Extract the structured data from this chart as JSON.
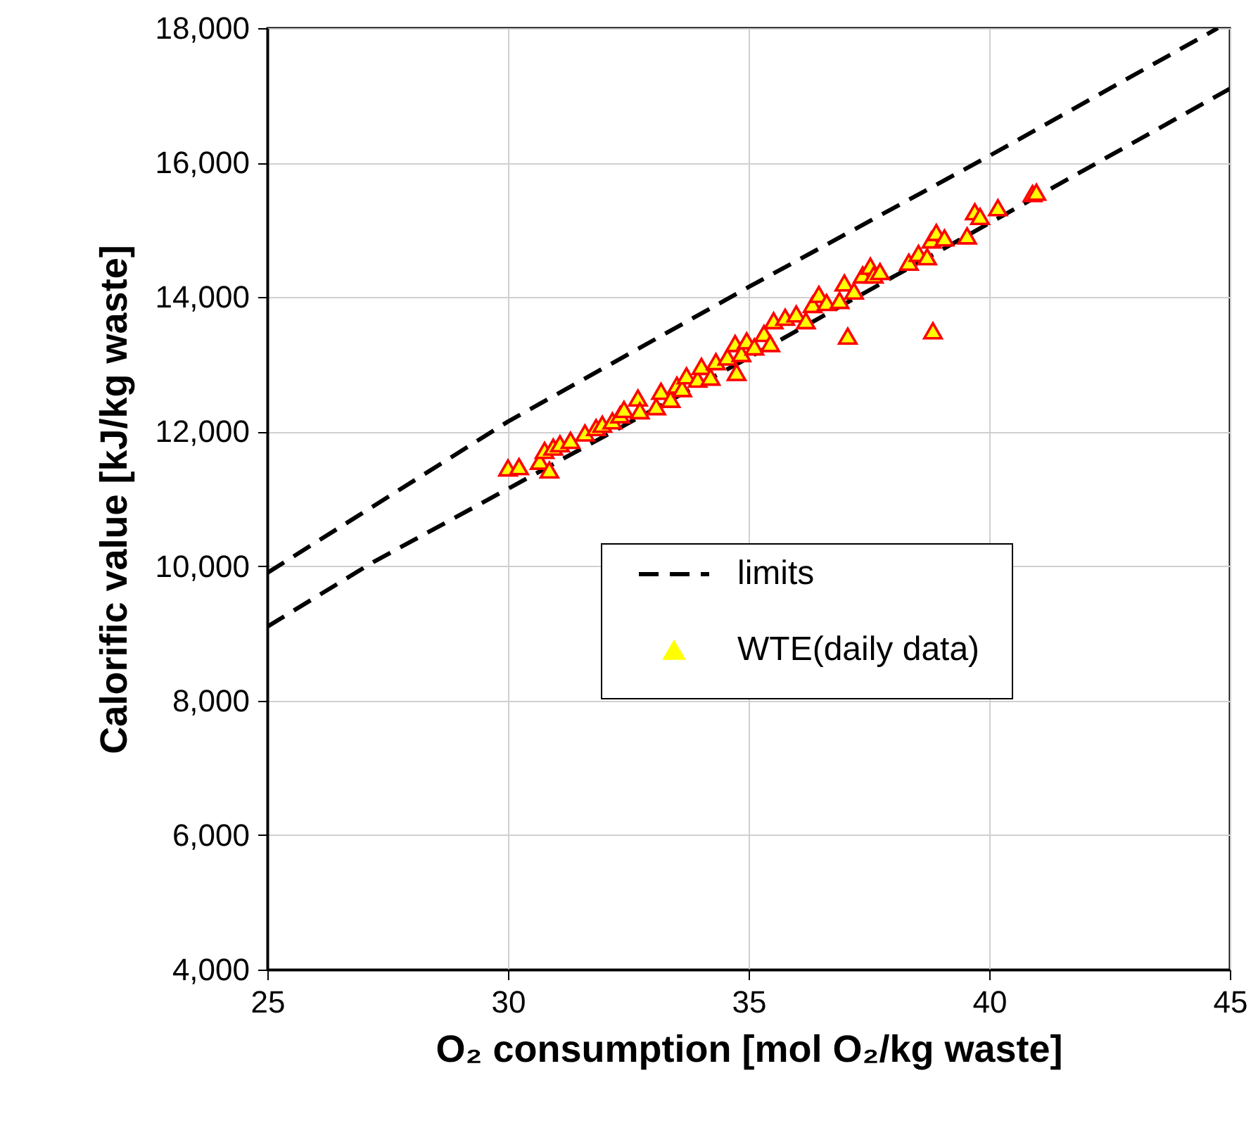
{
  "chart_data": {
    "type": "scatter",
    "xlabel": "O₂ consumption [mol O₂/kg waste]",
    "ylabel": "Calorific value [kJ/kg waste]",
    "xlim": [
      25,
      45
    ],
    "xticks": [
      25,
      30,
      35,
      40,
      45
    ],
    "ylim": [
      4000,
      18000
    ],
    "yticks": [
      {
        "value": 4000,
        "label": "4,000"
      },
      {
        "value": 6000,
        "label": "6,000"
      },
      {
        "value": 8000,
        "label": "8,000"
      },
      {
        "value": 10000,
        "label": "10,000"
      },
      {
        "value": 12000,
        "label": "12,000"
      },
      {
        "value": 14000,
        "label": "14,000"
      },
      {
        "value": 16000,
        "label": "16,000"
      },
      {
        "value": 18000,
        "label": "18,000"
      }
    ],
    "grid": true,
    "legend": "bottom right",
    "series": [
      {
        "name": "limits",
        "type": "line",
        "line_style": "dashed",
        "color": "#000000",
        "x": [
          25,
          30,
          35,
          40,
          44.75
        ],
        "values": [
          9900,
          12150,
          14150,
          16100,
          18000
        ]
      },
      {
        "type": "line",
        "line_style": "dashed",
        "color": "#000000",
        "x": [
          25,
          27.2,
          30,
          35,
          40,
          45
        ],
        "values": [
          9100,
          10060,
          11150,
          13100,
          15100,
          17100
        ]
      },
      {
        "name": "WTE(daily data)",
        "marker": "triangle",
        "color": "#ffff00",
        "x": [
          30.0,
          30.23,
          30.66,
          30.76,
          30.86,
          30.94,
          31.08,
          31.3,
          31.6,
          31.83,
          31.96,
          32.17,
          32.33,
          32.41,
          32.7,
          32.74,
          33.08,
          33.18,
          33.38,
          33.51,
          33.62,
          33.71,
          33.94,
          34.02,
          34.21,
          34.32,
          34.56,
          34.72,
          34.75,
          34.85,
          34.96,
          35.12,
          35.32,
          35.45,
          35.52,
          35.76,
          35.99,
          36.19,
          36.33,
          36.46,
          36.62,
          36.89,
          36.99,
          37.06,
          37.19,
          37.37,
          37.53,
          37.6,
          37.73,
          38.33,
          38.53,
          38.71,
          38.8,
          38.83,
          38.9,
          39.07,
          39.54,
          39.7,
          39.81,
          40.18,
          40.9,
          40.98
        ],
        "values": [
          11460,
          11480,
          11560,
          11720,
          11430,
          11770,
          11820,
          11870,
          11980,
          12060,
          12110,
          12160,
          12250,
          12330,
          12500,
          12310,
          12370,
          12600,
          12480,
          12690,
          12640,
          12830,
          12780,
          12970,
          12810,
          13040,
          13110,
          13310,
          12880,
          13160,
          13350,
          13260,
          13460,
          13310,
          13650,
          13700,
          13750,
          13650,
          13890,
          14040,
          13920,
          13950,
          14210,
          13420,
          14090,
          14330,
          14460,
          14330,
          14380,
          14520,
          14650,
          14600,
          14850,
          13500,
          14960,
          14880,
          14910,
          15270,
          15200,
          15330,
          15540,
          15560
        ]
      }
    ]
  }
}
